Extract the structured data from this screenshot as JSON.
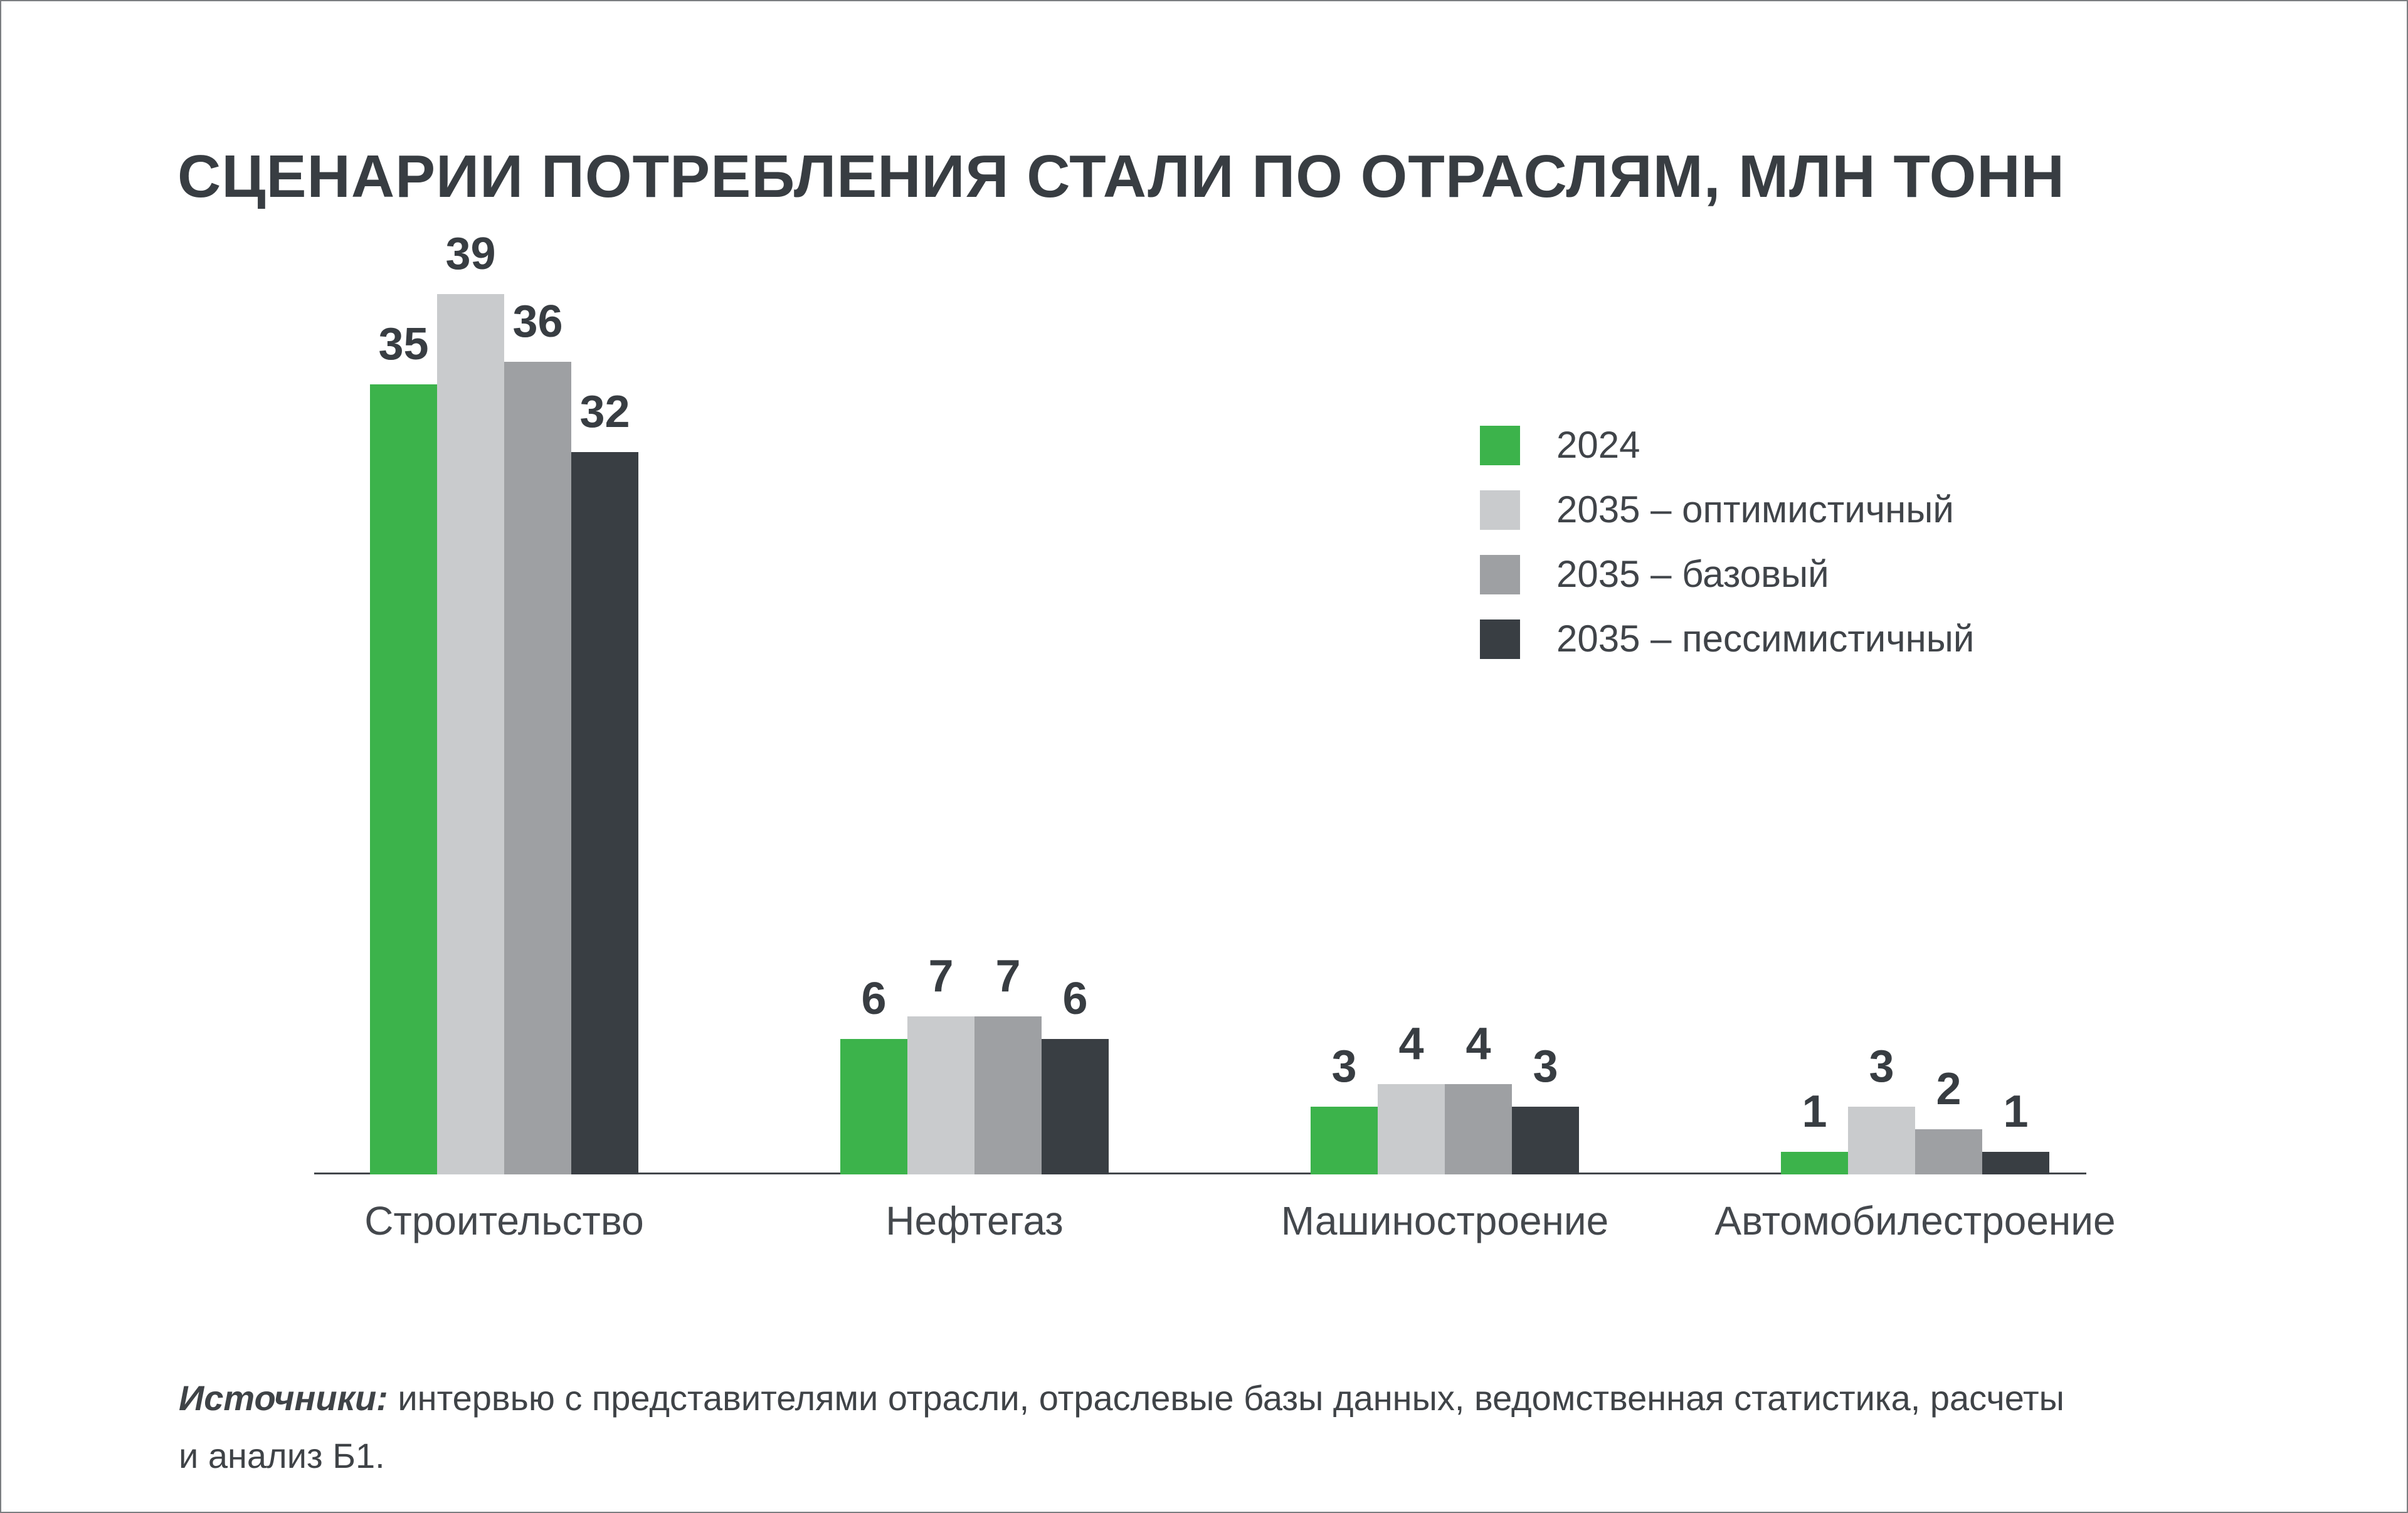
{
  "chart_data": {
    "type": "bar",
    "title": "СЦЕНАРИИ ПОТРЕБЛЕНИЯ СТАЛИ ПО ОТРАСЛЯМ, МЛН ТОНН",
    "categories": [
      "Строительство",
      "Нефтегаз",
      "Машиностроение",
      "Автомобилестроение"
    ],
    "series": [
      {
        "name": "2024",
        "color": "#3cb34b",
        "values": [
          35,
          6,
          3,
          1
        ]
      },
      {
        "name": "2035 – оптимистичный",
        "color": "#c9cbcd",
        "values": [
          39,
          7,
          4,
          3
        ]
      },
      {
        "name": "2035 – базовый",
        "color": "#9ea0a3",
        "values": [
          36,
          7,
          4,
          2
        ]
      },
      {
        "name": "2035 – пессимистичный",
        "color": "#393e43",
        "values": [
          32,
          6,
          3,
          1
        ]
      }
    ],
    "ylim": [
      0,
      42
    ],
    "grid": false,
    "value_labels": true,
    "legend_position": "upper-right",
    "text_color": "#383d42",
    "axis_line_color": "#43474b"
  },
  "source": {
    "prefix": "Источники:",
    "line1": "интервью с представителями отрасли, отраслевые базы данных, ведомственная статистика, расчеты",
    "line2": "и анализ Б1."
  }
}
